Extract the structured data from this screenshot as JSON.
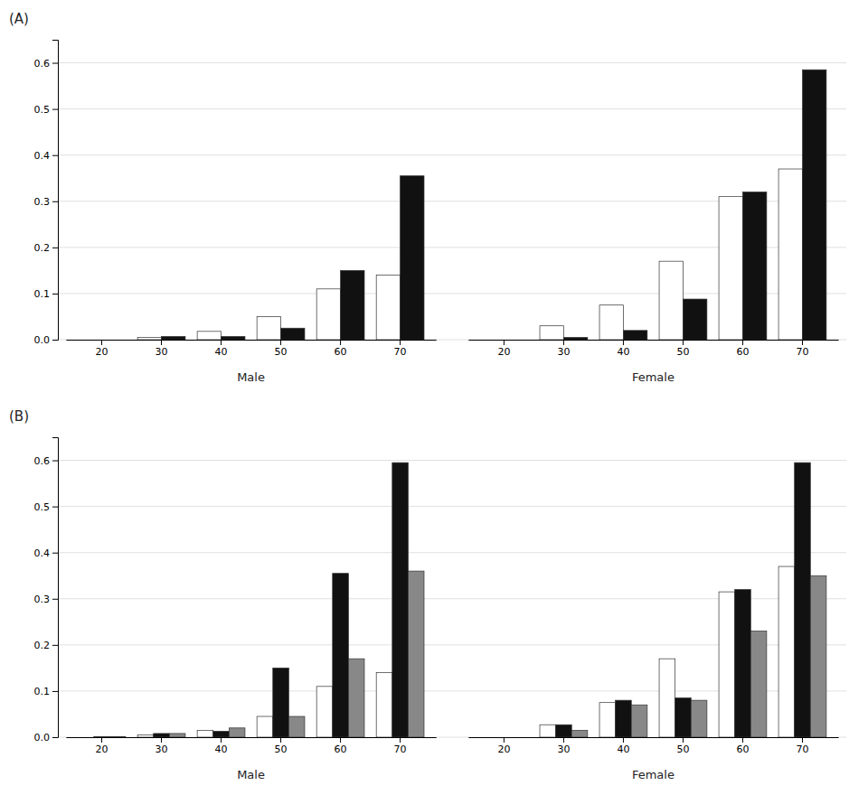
{
  "chart_data": [
    {
      "type": "bar",
      "title": "(A)",
      "categories": [
        "20",
        "30",
        "40",
        "50",
        "60",
        "70",
        "20",
        "30",
        "40",
        "50",
        "60",
        "70"
      ],
      "annotations": [
        "Male",
        "Female"
      ],
      "series": [
        {
          "color": "#ffffff",
          "values": [
            0.0,
            0.005,
            0.018,
            0.05,
            0.11,
            0.14,
            0.0,
            0.03,
            0.075,
            0.17,
            0.31,
            0.37
          ]
        },
        {
          "color": "#111111",
          "values": [
            0.0,
            0.007,
            0.007,
            0.025,
            0.15,
            0.355,
            0.0,
            0.005,
            0.02,
            0.088,
            0.32,
            0.585
          ]
        }
      ],
      "ylim": [
        0,
        0.65
      ],
      "yticks": [
        {
          "value": 0.0,
          "label": "0.0"
        },
        0.1,
        0.2,
        0.3,
        0.4,
        0.5,
        0.6
      ],
      "grid": true
    },
    {
      "type": "bar",
      "title": "(B)",
      "categories": [
        "20",
        "30",
        "40",
        "50",
        "60",
        "70",
        "20",
        "30",
        "40",
        "50",
        "60",
        "70"
      ],
      "annotations": [
        "Male",
        "Female"
      ],
      "series": [
        {
          "color": "#ffffff",
          "values": [
            0.0,
            0.005,
            0.015,
            0.045,
            0.11,
            0.14,
            0.0,
            0.027,
            0.075,
            0.17,
            0.315,
            0.37
          ]
        },
        {
          "color": "#111111",
          "values": [
            0.001,
            0.008,
            0.013,
            0.15,
            0.355,
            0.595,
            0.0,
            0.027,
            0.08,
            0.085,
            0.32,
            0.595
          ]
        },
        {
          "color": "#888888",
          "values": [
            0.001,
            0.008,
            0.02,
            0.045,
            0.17,
            0.36,
            0.0,
            0.015,
            0.07,
            0.08,
            0.23,
            0.35
          ]
        }
      ],
      "ylim": [
        0,
        0.65
      ],
      "yticks": [
        {
          "value": 0.0,
          "label": "0.0"
        },
        0.1,
        0.2,
        0.3,
        0.4,
        0.5,
        0.6
      ],
      "grid": true
    }
  ]
}
